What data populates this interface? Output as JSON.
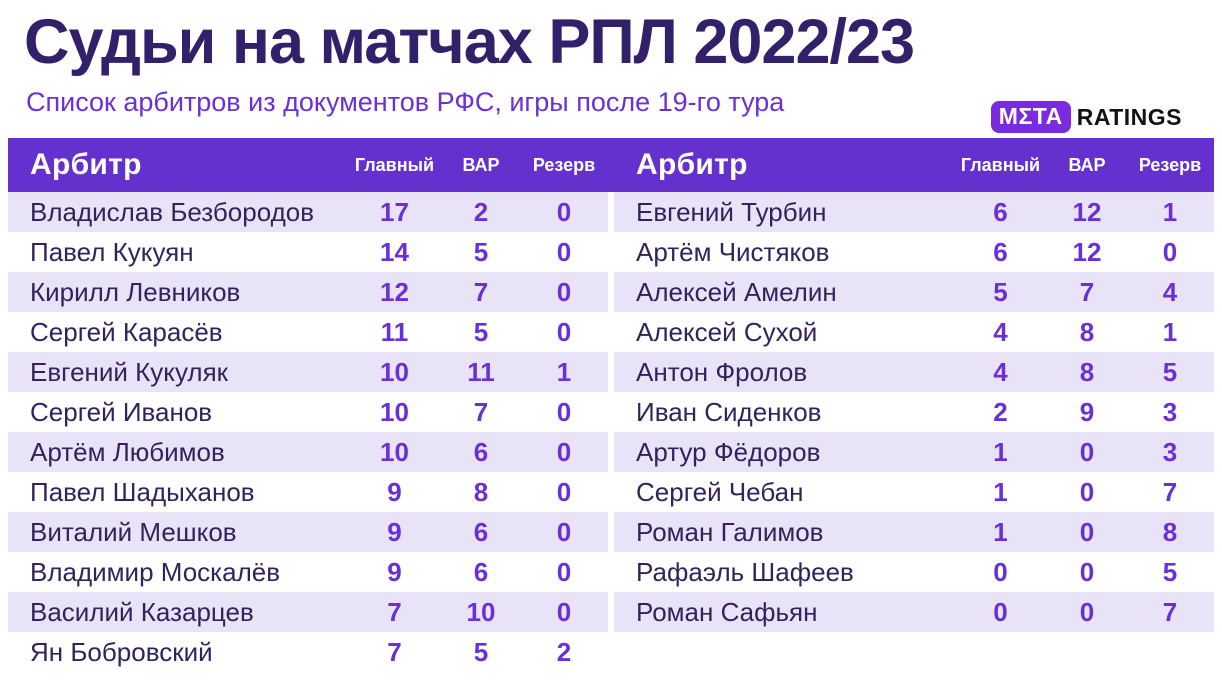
{
  "title": "Судьи на матчах РПЛ 2022/23",
  "subtitle": "Список арбитров из документов РФС, игры после 19-го тура",
  "logo": {
    "badge": "MΣTA",
    "ratings": "RATINGS"
  },
  "colors": {
    "header_purple": "#6531ce",
    "stripe_lavender": "#e9e3f7",
    "number_purple": "#6a2fd6",
    "name_dark": "#33235c",
    "title_dark": "#33206b",
    "subtitle_purple": "#6d2fd6",
    "logo_badge": "#7a2be0"
  },
  "table": {
    "headers": {
      "referee": "Арбитр",
      "main": "Главный",
      "var": "ВАР",
      "reserve": "Резерв"
    },
    "left_rows": [
      {
        "name": "Владислав Безбородов",
        "main": "17",
        "var": "2",
        "reserve": "0"
      },
      {
        "name": "Павел Кукуян",
        "main": "14",
        "var": "5",
        "reserve": "0"
      },
      {
        "name": "Кирилл Левников",
        "main": "12",
        "var": "7",
        "reserve": "0"
      },
      {
        "name": "Сергей Карасёв",
        "main": "11",
        "var": "5",
        "reserve": "0"
      },
      {
        "name": "Евгений Кукуляк",
        "main": "10",
        "var": "11",
        "reserve": "1"
      },
      {
        "name": "Сергей Иванов",
        "main": "10",
        "var": "7",
        "reserve": "0"
      },
      {
        "name": "Артём Любимов",
        "main": "10",
        "var": "6",
        "reserve": "0"
      },
      {
        "name": "Павел Шадыханов",
        "main": "9",
        "var": "8",
        "reserve": "0"
      },
      {
        "name": "Виталий Мешков",
        "main": "9",
        "var": "6",
        "reserve": "0"
      },
      {
        "name": "Владимир Москалёв",
        "main": "9",
        "var": "6",
        "reserve": "0"
      },
      {
        "name": "Василий Казарцев",
        "main": "7",
        "var": "10",
        "reserve": "0"
      },
      {
        "name": "Ян Бобровский",
        "main": "7",
        "var": "5",
        "reserve": "2"
      }
    ],
    "right_rows": [
      {
        "name": "Евгений Турбин",
        "main": "6",
        "var": "12",
        "reserve": "1"
      },
      {
        "name": "Артём Чистяков",
        "main": "6",
        "var": "12",
        "reserve": "0"
      },
      {
        "name": "Алексей Амелин",
        "main": "5",
        "var": "7",
        "reserve": "4"
      },
      {
        "name": "Алексей Сухой",
        "main": "4",
        "var": "8",
        "reserve": "1"
      },
      {
        "name": "Антон Фролов",
        "main": "4",
        "var": "8",
        "reserve": "5"
      },
      {
        "name": "Иван Сиденков",
        "main": "2",
        "var": "9",
        "reserve": "3"
      },
      {
        "name": "Артур Фёдоров",
        "main": "1",
        "var": "0",
        "reserve": "3"
      },
      {
        "name": "Сергей Чебан",
        "main": "1",
        "var": "0",
        "reserve": "7"
      },
      {
        "name": "Роман Галимов",
        "main": "1",
        "var": "0",
        "reserve": "8"
      },
      {
        "name": "Рафаэль Шафеев",
        "main": "0",
        "var": "0",
        "reserve": "5"
      },
      {
        "name": "Роман Сафьян",
        "main": "0",
        "var": "0",
        "reserve": "7"
      }
    ]
  },
  "chart_data": {
    "type": "table",
    "title": "Судьи на матчах РПЛ 2022/23",
    "subtitle": "Список арбитров из документов РФС, игры после 19-го тура",
    "columns": [
      "Арбитр",
      "Главный",
      "ВАР",
      "Резерв"
    ],
    "rows": [
      [
        "Владислав Безбородов",
        17,
        2,
        0
      ],
      [
        "Павел Кукуян",
        14,
        5,
        0
      ],
      [
        "Кирилл Левников",
        12,
        7,
        0
      ],
      [
        "Сергей Карасёв",
        11,
        5,
        0
      ],
      [
        "Евгений Кукуляк",
        10,
        11,
        1
      ],
      [
        "Сергей Иванов",
        10,
        7,
        0
      ],
      [
        "Артём Любимов",
        10,
        6,
        0
      ],
      [
        "Павел Шадыханов",
        9,
        8,
        0
      ],
      [
        "Виталий Мешков",
        9,
        6,
        0
      ],
      [
        "Владимир Москалёв",
        9,
        6,
        0
      ],
      [
        "Василий Казарцев",
        7,
        10,
        0
      ],
      [
        "Ян Бобровский",
        7,
        5,
        2
      ],
      [
        "Евгений Турбин",
        6,
        12,
        1
      ],
      [
        "Артём Чистяков",
        6,
        12,
        0
      ],
      [
        "Алексей Амелин",
        5,
        7,
        4
      ],
      [
        "Алексей Сухой",
        4,
        8,
        1
      ],
      [
        "Антон Фролов",
        4,
        8,
        5
      ],
      [
        "Иван Сиденков",
        2,
        9,
        3
      ],
      [
        "Артур Фёдоров",
        1,
        0,
        3
      ],
      [
        "Сергей Чебан",
        1,
        0,
        7
      ],
      [
        "Роман Галимов",
        1,
        0,
        8
      ],
      [
        "Рафаэль Шафеев",
        0,
        0,
        5
      ],
      [
        "Роман Сафьян",
        0,
        0,
        7
      ]
    ]
  }
}
